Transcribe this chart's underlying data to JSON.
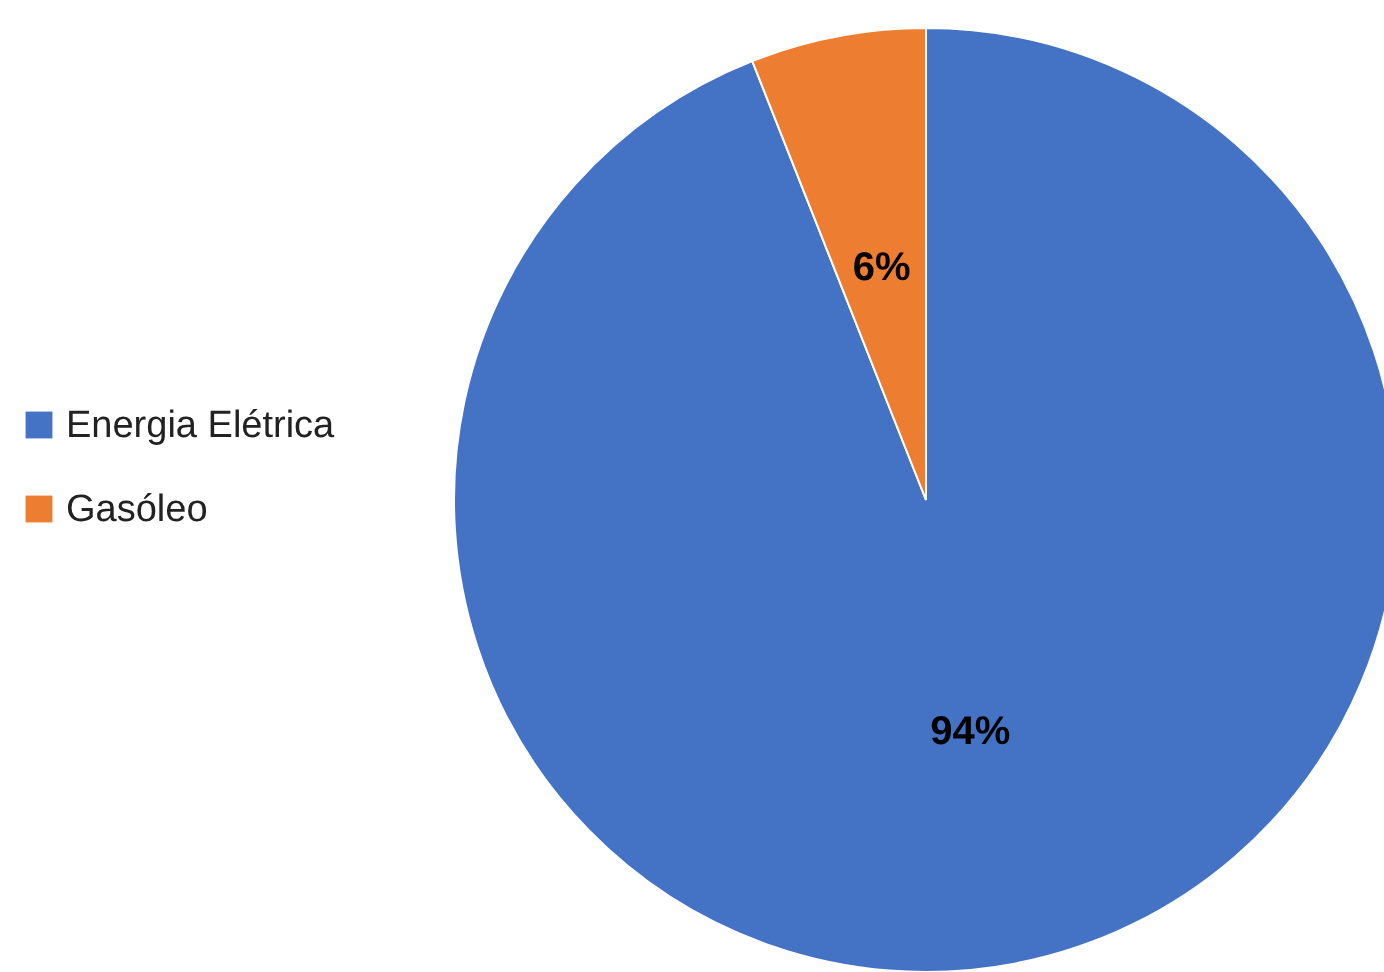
{
  "chart_data": {
    "type": "pie",
    "categories": [
      "Energia Elétrica",
      "Gasóleo"
    ],
    "values": [
      94,
      6
    ],
    "colors": [
      "#4472c4",
      "#ed7d31"
    ],
    "value_labels": [
      "94%",
      "6%"
    ],
    "legend": "left"
  }
}
